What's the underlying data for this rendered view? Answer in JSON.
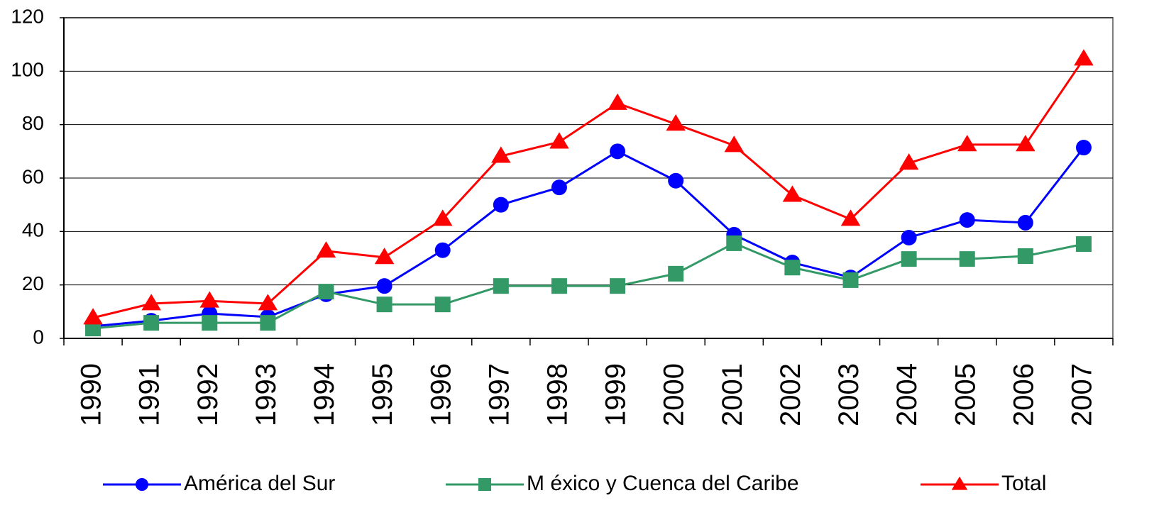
{
  "chart_data": {
    "type": "line",
    "categories": [
      "1990",
      "1991",
      "1992",
      "1993",
      "1994",
      "1995",
      "1996",
      "1997",
      "1998",
      "1999",
      "2000",
      "2001",
      "2002",
      "2003",
      "2004",
      "2005",
      "2006",
      "2007"
    ],
    "series": [
      {
        "name": "América del Sur",
        "color": "#0000ff",
        "marker": "circle",
        "values": [
          4.5,
          6.6,
          9.3,
          8,
          16.5,
          19.6,
          33,
          50,
          56.5,
          70,
          59,
          38.8,
          28.4,
          22.8,
          37.7,
          44.3,
          43.3,
          71.4
        ]
      },
      {
        "name": "M éxico y Cuenca del Caribe",
        "color": "#339966",
        "marker": "square",
        "values": [
          3.7,
          5.8,
          5.8,
          5.8,
          17.5,
          12.7,
          12.7,
          19.6,
          19.6,
          19.6,
          24.2,
          35.6,
          26.5,
          21.8,
          29.7,
          29.7,
          30.8,
          35.3
        ]
      },
      {
        "name": "Total",
        "color": "#ff0000",
        "marker": "triangle",
        "values": [
          7.7,
          13,
          14,
          13,
          32.7,
          30.3,
          44.6,
          68.2,
          73.5,
          88,
          80.2,
          72.2,
          53.6,
          44.6,
          65.6,
          72.5,
          72.5,
          104.6
        ]
      }
    ],
    "ylim": [
      0,
      120
    ],
    "yticks": [
      0,
      20,
      40,
      60,
      80,
      100,
      120
    ],
    "grid": true,
    "legend": "bottom"
  }
}
